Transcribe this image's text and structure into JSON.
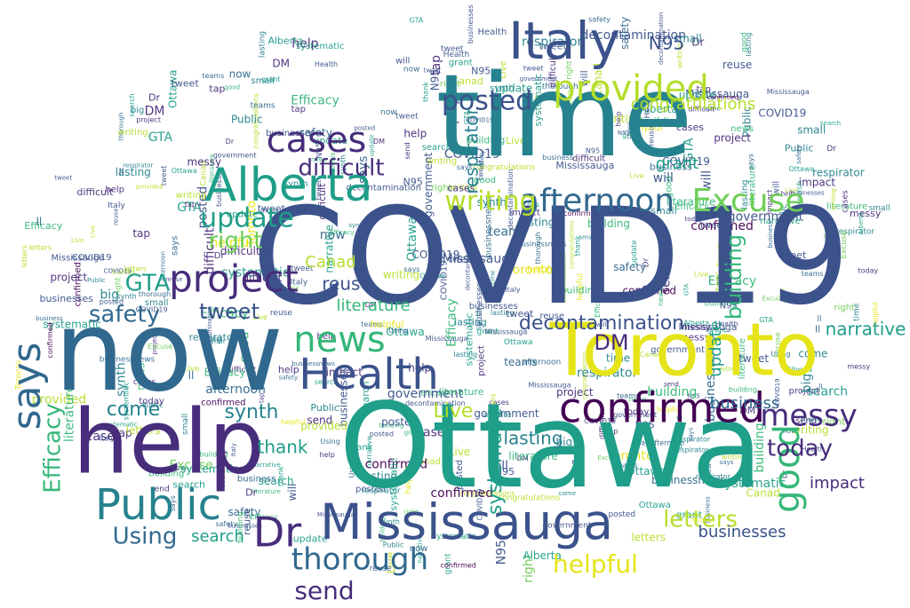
{
  "palette": {
    "dark_purple": "#440154",
    "indigo": "#3b528b",
    "slate_blue": "#31688e",
    "teal_blue": "#26828e",
    "teal": "#1f9e89",
    "green": "#35b779",
    "light_green": "#6ece58",
    "lime": "#b5de2b",
    "yellow": "#e5e419",
    "navy": "#472d7b"
  },
  "words": [
    {
      "text": "COVID19",
      "color": "indigo"
    },
    {
      "text": "Ottawa",
      "color": "teal"
    },
    {
      "text": "time",
      "color": "teal_blue"
    },
    {
      "text": "now",
      "color": "slate_blue"
    },
    {
      "text": "help",
      "color": "navy"
    },
    {
      "text": "Toronto",
      "color": "yellow"
    },
    {
      "text": "Italy",
      "color": "indigo"
    },
    {
      "text": "Mississauga",
      "color": "indigo"
    },
    {
      "text": "Alberta",
      "color": "teal"
    },
    {
      "text": "Health",
      "color": "indigo"
    },
    {
      "text": "confirmed",
      "color": "dark_purple"
    },
    {
      "text": "Public",
      "color": "teal_blue"
    },
    {
      "text": "project",
      "color": "navy"
    },
    {
      "text": "provided",
      "color": "lime"
    },
    {
      "text": "afternoon",
      "color": "slate_blue"
    },
    {
      "text": "Excuse",
      "color": "light_green"
    },
    {
      "text": "news",
      "color": "green"
    },
    {
      "text": "says",
      "color": "slate_blue"
    },
    {
      "text": "cases",
      "color": "navy"
    },
    {
      "text": "Dr",
      "color": "navy"
    },
    {
      "text": "thorough",
      "color": "slate_blue"
    },
    {
      "text": "good",
      "color": "green"
    },
    {
      "text": "messy",
      "color": "navy"
    },
    {
      "text": "today",
      "color": "navy"
    },
    {
      "text": "helpful",
      "color": "yellow"
    },
    {
      "text": "update",
      "color": "teal"
    },
    {
      "text": "writing",
      "color": "lime"
    },
    {
      "text": "posted",
      "color": "indigo"
    },
    {
      "text": "difficult",
      "color": "navy"
    },
    {
      "text": "right",
      "color": "light_green"
    },
    {
      "text": "Using",
      "color": "slate_blue"
    },
    {
      "text": "safety",
      "color": "slate_blue"
    },
    {
      "text": "tweet",
      "color": "indigo"
    },
    {
      "text": "GTA",
      "color": "teal"
    },
    {
      "text": "Efficacy",
      "color": "green"
    },
    {
      "text": "letters",
      "color": "lime"
    },
    {
      "text": "send",
      "color": "navy"
    },
    {
      "text": "building",
      "color": "green"
    },
    {
      "text": "Live",
      "color": "lime"
    },
    {
      "text": "come",
      "color": "teal_blue"
    },
    {
      "text": "synth",
      "color": "teal_blue"
    },
    {
      "text": "DM",
      "color": "navy"
    },
    {
      "text": "decontamination",
      "color": "indigo"
    },
    {
      "text": "narrative",
      "color": "teal"
    },
    {
      "text": "systematic",
      "color": "teal"
    },
    {
      "text": "respirator",
      "color": "teal_blue"
    },
    {
      "text": "literature",
      "color": "green"
    },
    {
      "text": "reuse",
      "color": "indigo"
    },
    {
      "text": "N95",
      "color": "indigo"
    },
    {
      "text": "search",
      "color": "teal"
    },
    {
      "text": "lasting",
      "color": "teal_blue"
    },
    {
      "text": "thank",
      "color": "teal"
    },
    {
      "text": "businesses",
      "color": "indigo"
    },
    {
      "text": "business",
      "color": "slate_blue"
    },
    {
      "text": "businessnews",
      "color": "slate_blue"
    },
    {
      "text": "congratulations",
      "color": "lime"
    },
    {
      "text": "impact",
      "color": "navy"
    },
    {
      "text": "teams",
      "color": "slate_blue"
    },
    {
      "text": "grant",
      "color": "teal"
    },
    {
      "text": "big",
      "color": "teal_blue"
    },
    {
      "text": "tap",
      "color": "navy"
    },
    {
      "text": "small",
      "color": "teal_blue"
    },
    {
      "text": "government",
      "color": "indigo"
    },
    {
      "text": "Canad",
      "color": "lime"
    },
    {
      "text": "will",
      "color": "indigo"
    },
    {
      "text": "ll",
      "color": "slate_blue"
    }
  ]
}
